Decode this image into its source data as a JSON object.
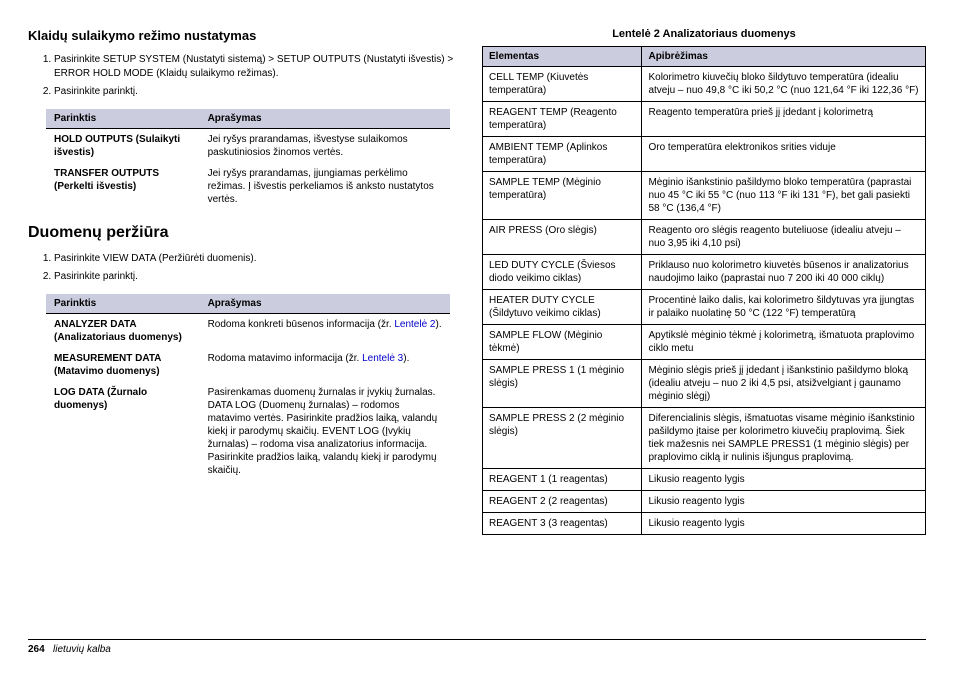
{
  "left": {
    "heading1": "Klaidų sulaikymo režimo nustatymas",
    "steps1": [
      "Pasirinkite SETUP SYSTEM (Nustatyti sistemą) > SETUP OUTPUTS (Nustatyti išvestis) > ERROR HOLD MODE (Klaidų sulaikymo režimas).",
      "Pasirinkite parinktį."
    ],
    "table1": {
      "head_opt": "Parinktis",
      "head_desc": "Aprašymas",
      "rows": [
        {
          "opt": "HOLD OUTPUTS (Sulaikyti išvestis)",
          "desc": "Jei ryšys prarandamas, išvestyse sulaikomos paskutiniosios žinomos vertės."
        },
        {
          "opt": "TRANSFER OUTPUTS (Perkelti išvestis)",
          "desc": "Jei ryšys prarandamas, įjungiamas perkėlimo režimas. Į išvestis perkeliamos iš anksto nustatytos vertės."
        }
      ]
    },
    "heading2": "Duomenų peržiūra",
    "steps2": [
      "Pasirinkite VIEW DATA (Peržiūrėti duomenis).",
      "Pasirinkite parinktį."
    ],
    "table2": {
      "head_opt": "Parinktis",
      "head_desc": "Aprašymas",
      "rows": [
        {
          "opt": "ANALYZER DATA (Analizatoriaus duomenys)",
          "desc_pre": "Rodoma konkreti būsenos informacija (žr. ",
          "link": "Lentelė 2",
          "desc_post": ")."
        },
        {
          "opt": "MEASUREMENT DATA (Matavimo duomenys)",
          "desc_pre": "Rodoma matavimo informacija (žr. ",
          "link": "Lentelė 3",
          "desc_post": ")."
        },
        {
          "opt": "LOG DATA (Žurnalo duomenys)",
          "desc_plain": "Pasirenkamas duomenų žurnalas ir įvykių žurnalas. DATA LOG (Duomenų žurnalas) – rodomos matavimo vertės. Pasirinkite pradžios laiką, valandų kiekį ir parodymų skaičių. EVENT LOG (Įvykių žurnalas) – rodoma visa analizatorius informacija. Pasirinkite pradžios laiką, valandų kiekį ir parodymų skaičių."
        }
      ]
    }
  },
  "right": {
    "caption": "Lentelė 2  Analizatoriaus duomenys",
    "head_el": "Elementas",
    "head_def": "Apibrėžimas",
    "rows": [
      {
        "el": "CELL TEMP (Kiuvetės temperatūra)",
        "def": "Kolorimetro kiuvečių bloko šildytuvo temperatūra (idealiu atveju – nuo 49,8 °C iki 50,2 °C (nuo 121,64 °F iki 122,36 °F)"
      },
      {
        "el": "REAGENT TEMP (Reagento temperatūra)",
        "def": "Reagento temperatūra prieš jį įdedant į kolorimetrą"
      },
      {
        "el": "AMBIENT TEMP (Aplinkos temperatūra)",
        "def": "Oro temperatūra elektronikos srities viduje"
      },
      {
        "el": "SAMPLE TEMP (Mėginio temperatūra)",
        "def": "Mėginio išankstinio pašildymo bloko temperatūra (paprastai nuo 45 °C iki 55 °C (nuo 113 °F iki 131 °F), bet gali pasiekti 58 °C (136,4 °F)"
      },
      {
        "el": "AIR PRESS (Oro slėgis)",
        "def": "Reagento oro slėgis reagento buteliuose (idealiu atveju – nuo 3,95 iki 4,10 psi)"
      },
      {
        "el": "LED DUTY CYCLE (Šviesos diodo veikimo ciklas)",
        "def": "Priklauso nuo kolorimetro kiuvetės būsenos ir analizatorius naudojimo laiko (paprastai nuo 7 200 iki 40 000 ciklų)"
      },
      {
        "el": "HEATER DUTY CYCLE (Šildytuvo veikimo ciklas)",
        "def": "Procentinė laiko dalis, kai kolorimetro šildytuvas yra įjungtas ir palaiko nuolatinę 50 °C (122 °F) temperatūrą"
      },
      {
        "el": "SAMPLE FLOW (Mėginio tėkmė)",
        "def": "Apytikslė mėginio tėkmė į kolorimetrą, išmatuota praplovimo ciklo metu"
      },
      {
        "el": "SAMPLE PRESS 1 (1 mėginio slėgis)",
        "def": "Mėginio slėgis prieš jį įdedant į išankstinio pašildymo bloką (idealiu atveju – nuo 2 iki 4,5 psi, atsižvelgiant į gaunamo mėginio slėgį)"
      },
      {
        "el": "SAMPLE PRESS 2 (2 mėginio slėgis)",
        "def": "Diferencialinis slėgis, išmatuotas visame mėginio išankstinio pašildymo įtaise per kolorimetro kiuvečių praplovimą. Šiek tiek mažesnis nei SAMPLE PRESS1 (1 mėginio slėgis) per praplovimo ciklą ir nulinis išjungus praplovimą."
      },
      {
        "el": "REAGENT 1 (1 reagentas)",
        "def": "Likusio reagento lygis"
      },
      {
        "el": "REAGENT 2 (2 reagentas)",
        "def": "Likusio reagento lygis"
      },
      {
        "el": "REAGENT 3 (3 reagentas)",
        "def": "Likusio reagento lygis"
      }
    ]
  },
  "footer": {
    "page": "264",
    "lang": "lietuvių kalba"
  }
}
